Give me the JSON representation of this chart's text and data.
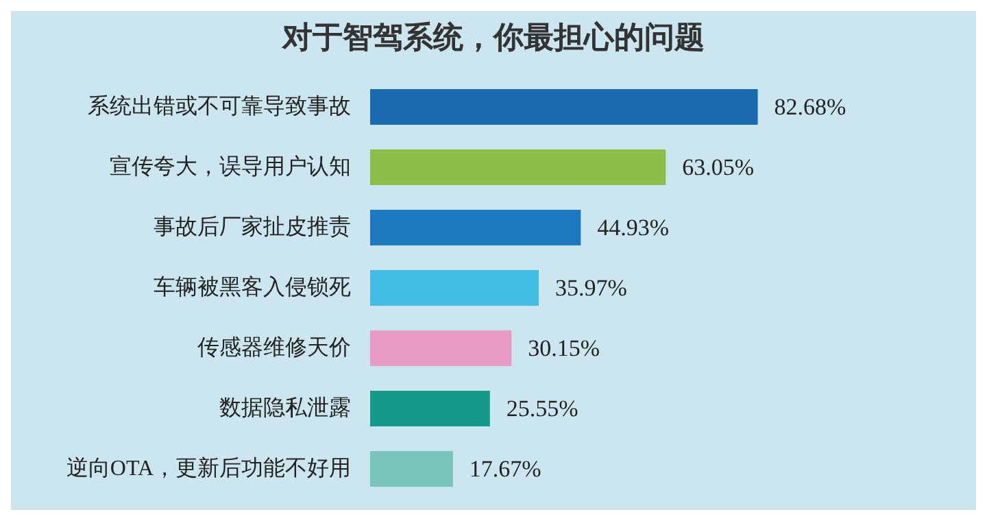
{
  "chart_data": {
    "type": "bar",
    "orientation": "horizontal",
    "title": "对于智驾系统，你最担心的问题",
    "categories": [
      "系统出错或不可靠导致事故",
      "宣传夸大，误导用户认知",
      "事故后厂家扯皮推责",
      "车辆被黑客入侵锁死",
      "传感器维修天价",
      "数据隐私泄露",
      "逆向OTA，更新后功能不好用"
    ],
    "values": [
      82.68,
      63.05,
      44.93,
      35.97,
      30.15,
      25.55,
      17.67
    ],
    "value_labels": [
      "82.68%",
      "63.05%",
      "44.93%",
      "35.97%",
      "30.15%",
      "25.55%",
      "17.67%"
    ],
    "colors": [
      "#1a6cae",
      "#8cbf4a",
      "#1c78bf",
      "#43bde3",
      "#e899c4",
      "#12998a",
      "#79c5b9"
    ]
  }
}
